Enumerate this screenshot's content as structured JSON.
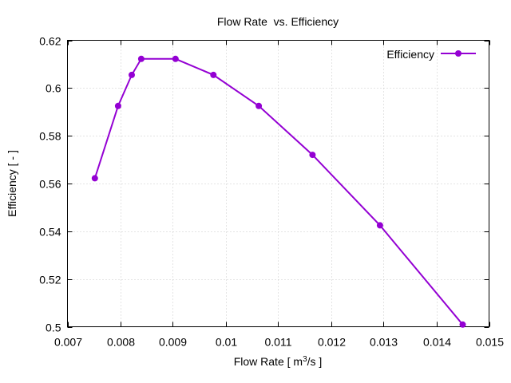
{
  "chart_data": {
    "type": "line",
    "title": "Flow Rate  vs. Efficiency",
    "xlabel": "Flow Rate [ m3/s ]",
    "xlabel_parts": {
      "before": "Flow Rate [ m",
      "sup": "3",
      "after": "/s ]"
    },
    "ylabel": "Efficiency [ - ]",
    "xlim": [
      0.007,
      0.015
    ],
    "ylim": [
      0.5,
      0.62
    ],
    "xticks": [
      0.007,
      0.008,
      0.009,
      0.01,
      0.011,
      0.012,
      0.013,
      0.014,
      0.015
    ],
    "xtick_labels": [
      "0.007",
      "0.008",
      "0.009",
      "0.01",
      "0.011",
      "0.012",
      "0.013",
      "0.014",
      "0.015"
    ],
    "yticks": [
      0.5,
      0.52,
      0.54,
      0.56,
      0.58,
      0.6,
      0.62
    ],
    "ytick_labels": [
      "0.5",
      "0.52",
      "0.54",
      "0.56",
      "0.58",
      "0.6",
      "0.62"
    ],
    "grid": true,
    "legend_position": "top-right",
    "series": [
      {
        "name": "Efficiency",
        "color": "#9400d3",
        "x": [
          0.00752,
          0.00796,
          0.00822,
          0.0084,
          0.00905,
          0.00977,
          0.01063,
          0.01165,
          0.01293,
          0.0145
        ],
        "y": [
          0.5622,
          0.5925,
          0.6055,
          0.6122,
          0.6122,
          0.6055,
          0.5925,
          0.572,
          0.5425,
          0.5009
        ]
      }
    ]
  }
}
